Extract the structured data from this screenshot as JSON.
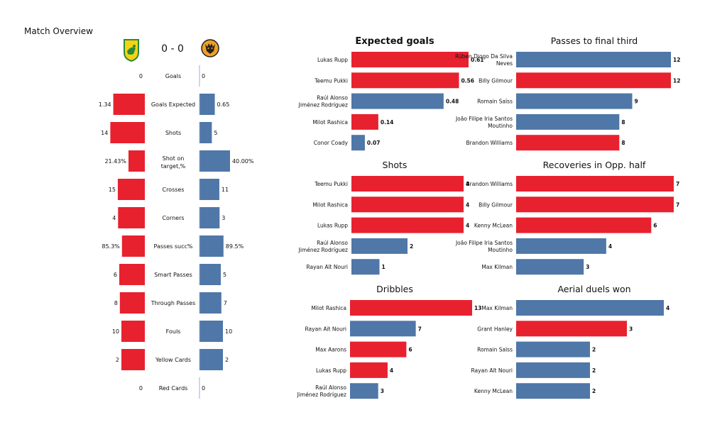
{
  "overview": {
    "title": "Match Overview",
    "score": "0 - 0",
    "home_color": "#e8212f",
    "away_color": "#4f77a8",
    "stats": [
      {
        "label": "Goals",
        "home": 0,
        "away": 0,
        "home_text": "0",
        "away_text": "0"
      },
      {
        "label": "Goals Expected",
        "home": 1.34,
        "away": 0.65,
        "home_text": "1.34",
        "away_text": "0.65"
      },
      {
        "label": "Shots",
        "home": 14,
        "away": 5,
        "home_text": "14",
        "away_text": "5"
      },
      {
        "label": "Shot on target,%",
        "home": 21.43,
        "away": 40.0,
        "home_text": "21.43%",
        "away_text": "40.00%"
      },
      {
        "label": "Crosses",
        "home": 15,
        "away": 11,
        "home_text": "15",
        "away_text": "11"
      },
      {
        "label": "Corners",
        "home": 4,
        "away": 3,
        "home_text": "4",
        "away_text": "3"
      },
      {
        "label": "Passes succ%",
        "home": 85.3,
        "away": 89.5,
        "home_text": "85.3%",
        "away_text": "89.5%"
      },
      {
        "label": "Smart Passes",
        "home": 6,
        "away": 5,
        "home_text": "6",
        "away_text": "5"
      },
      {
        "label": "Through Passes",
        "home": 8,
        "away": 7,
        "home_text": "8",
        "away_text": "7"
      },
      {
        "label": "Fouls",
        "home": 10,
        "away": 10,
        "home_text": "10",
        "away_text": "10"
      },
      {
        "label": "Yellow Cards",
        "home": 2,
        "away": 2,
        "home_text": "2",
        "away_text": "2"
      },
      {
        "label": "Red Cards",
        "home": 0,
        "away": 0,
        "home_text": "0",
        "away_text": "0"
      }
    ]
  },
  "chart_data": [
    {
      "type": "bar",
      "orientation": "horizontal",
      "title": "Expected goals",
      "title_bold": true,
      "players": [
        "Lukas Rupp",
        "Teemu Pukki",
        "Raúl Alonso\nJiménez Rodríguez",
        "Milot Rashica",
        "Conor  Coady"
      ],
      "values": [
        0.61,
        0.56,
        0.48,
        0.14,
        0.07
      ],
      "labels": [
        "0.61",
        "0.56",
        "0.48",
        "0.14",
        "0.07"
      ],
      "team": [
        "home",
        "home",
        "away",
        "home",
        "away"
      ],
      "xlim": [
        0,
        0.61
      ]
    },
    {
      "type": "bar",
      "orientation": "horizontal",
      "title": "Passes to final third",
      "title_bold": false,
      "players": [
        "Rúben Diogo Da Silva\nNeves",
        "Billy Gilmour",
        "Romain Saïss",
        "João Filipe Iria Santos\nMoutinho",
        "Brandon Williams"
      ],
      "values": [
        12,
        12,
        9,
        8,
        8
      ],
      "labels": [
        "12",
        "12",
        "9",
        "8",
        "8"
      ],
      "team": [
        "away",
        "home",
        "away",
        "away",
        "home"
      ],
      "xlim": [
        0,
        12
      ]
    },
    {
      "type": "bar",
      "orientation": "horizontal",
      "title": "Shots",
      "title_bold": false,
      "players": [
        "Teemu Pukki",
        "Milot Rashica",
        "Lukas Rupp",
        "Raúl Alonso\nJiménez Rodríguez",
        "Rayan Aït Nouri"
      ],
      "values": [
        4,
        4,
        4,
        2,
        1
      ],
      "labels": [
        "4",
        "4",
        "4",
        "2",
        "1"
      ],
      "team": [
        "home",
        "home",
        "home",
        "away",
        "away"
      ],
      "xlim": [
        0,
        4
      ]
    },
    {
      "type": "bar",
      "orientation": "horizontal",
      "title": "Recoveries in Opp. half",
      "title_bold": false,
      "players": [
        "Brandon Williams",
        "Billy Gilmour",
        "Kenny McLean",
        "João Filipe Iria Santos\nMoutinho",
        "Max Kilman"
      ],
      "values": [
        7,
        7,
        6,
        4,
        3
      ],
      "labels": [
        "7",
        "7",
        "6",
        "4",
        "3"
      ],
      "team": [
        "home",
        "home",
        "home",
        "away",
        "away"
      ],
      "xlim": [
        0,
        7
      ]
    },
    {
      "type": "bar",
      "orientation": "horizontal",
      "title": "Dribbles",
      "title_bold": false,
      "players": [
        "Milot Rashica",
        "Rayan Aït Nouri",
        "Max Aarons",
        "Lukas Rupp",
        "Raúl Alonso\nJiménez Rodríguez"
      ],
      "values": [
        13,
        7,
        6,
        4,
        3
      ],
      "labels": [
        "13",
        "7",
        "6",
        "4",
        "3"
      ],
      "team": [
        "home",
        "away",
        "home",
        "home",
        "away"
      ],
      "xlim": [
        0,
        13
      ]
    },
    {
      "type": "bar",
      "orientation": "horizontal",
      "title": "Aerial duels won",
      "title_bold": false,
      "players": [
        "Max Kilman",
        "Grant Hanley",
        "Romain Saïss",
        "Rayan Aït Nouri",
        "Kenny McLean"
      ],
      "values": [
        4,
        3,
        2,
        2,
        2
      ],
      "labels": [
        "4",
        "3",
        "2",
        "2",
        "2"
      ],
      "team": [
        "away",
        "home",
        "away",
        "away",
        "away"
      ],
      "xlim": [
        0,
        4
      ]
    }
  ]
}
